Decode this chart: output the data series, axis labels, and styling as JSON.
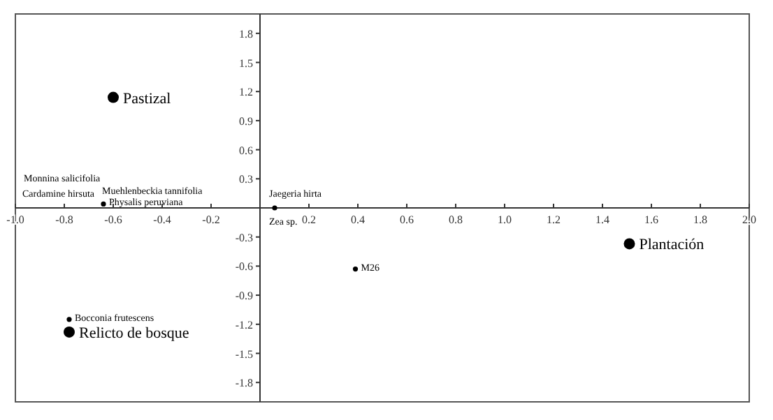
{
  "chart_data": {
    "type": "scatter",
    "xlim": [
      -1,
      2
    ],
    "ylim": [
      -2,
      2
    ],
    "xticks": [
      {
        "value": -1,
        "label": "-1.0"
      },
      -0.8,
      -0.6,
      -0.4,
      -0.2,
      0.2,
      0.4,
      0.6,
      0.8,
      {
        "value": 1,
        "label": "1.0"
      },
      1.2,
      1.4,
      1.6,
      1.8,
      {
        "value": 2,
        "label": "2.0"
      }
    ],
    "yticks": [
      -1.8,
      -1.5,
      -1.2,
      -0.9,
      -0.6,
      -0.3,
      0.3,
      0.6,
      0.9,
      1.2,
      1.5,
      1.8
    ],
    "grid": false,
    "marker": "circle",
    "series": [
      {
        "color": "#000000",
        "x": [
          -0.6,
          1.51,
          -0.78
        ],
        "values": [
          1.14,
          -0.37,
          -1.28
        ]
      },
      {
        "color": "#000000",
        "x": [
          -0.64,
          0.06,
          0.39,
          -0.78
        ],
        "values": [
          0.04,
          0.0,
          -0.63,
          -1.15
        ]
      }
    ],
    "annotations": [
      {
        "text": "Pastizal",
        "x": -0.6,
        "y": 1.14
      },
      {
        "text": "Plantación",
        "x": 1.51,
        "y": -0.37
      },
      {
        "text": "Relicto de bosque",
        "x": -0.78,
        "y": -1.28
      },
      "Monnina salicifolia",
      "Cardamine hirsuta",
      "Muehlenbeckia tannifolia",
      {
        "text": "Physalis peruviana",
        "x": -0.64,
        "y": 0.04
      },
      {
        "text": "Jaegeria hirta",
        "x": 0.06,
        "y": 0.0
      },
      {
        "text": "Zea sp.",
        "x": 0.06,
        "y": 0.0
      },
      {
        "text": "M26",
        "x": 0.39,
        "y": -0.63
      },
      {
        "text": "Bocconia frutescens",
        "x": -0.78,
        "y": -1.15
      }
    ]
  }
}
